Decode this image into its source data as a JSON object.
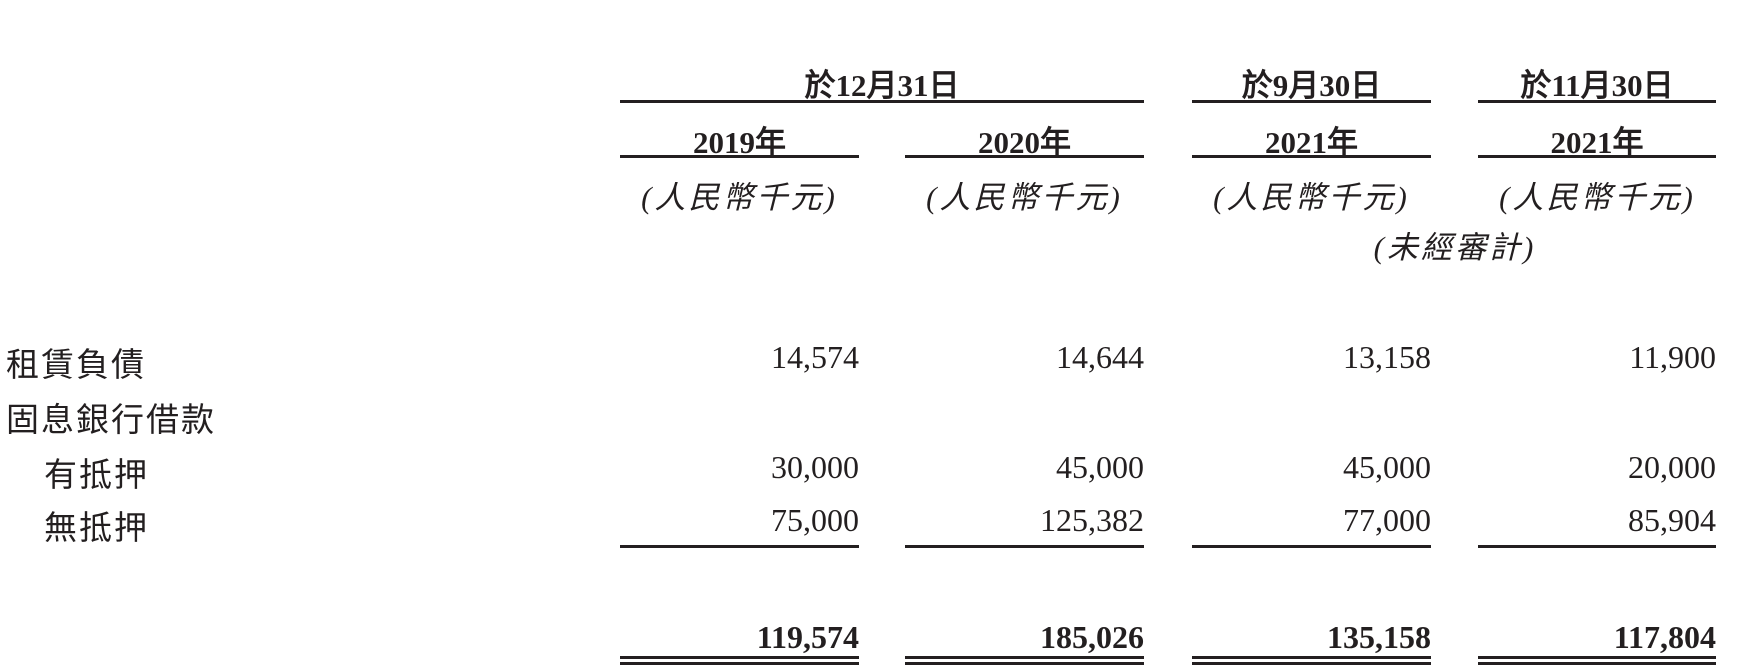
{
  "header": {
    "group_dec31": "於12月31日",
    "group_sep30": "於9月30日",
    "group_nov30": "於11月30日",
    "years": [
      "2019年",
      "2020年",
      "2021年",
      "2021年"
    ],
    "unit": "(人民幣千元)",
    "unaudited": "(未經審計)"
  },
  "rows": [
    {
      "label": "租賃負債",
      "values": [
        "14,574",
        "14,644",
        "13,158",
        "11,900"
      ]
    },
    {
      "label": "固息銀行借款",
      "values": []
    },
    {
      "label": "有抵押",
      "values": [
        "30,000",
        "45,000",
        "45,000",
        "20,000"
      ]
    },
    {
      "label": "無抵押",
      "values": [
        "75,000",
        "125,382",
        "77,000",
        "85,904"
      ]
    }
  ],
  "totals": [
    "119,574",
    "185,026",
    "135,158",
    "117,804"
  ]
}
